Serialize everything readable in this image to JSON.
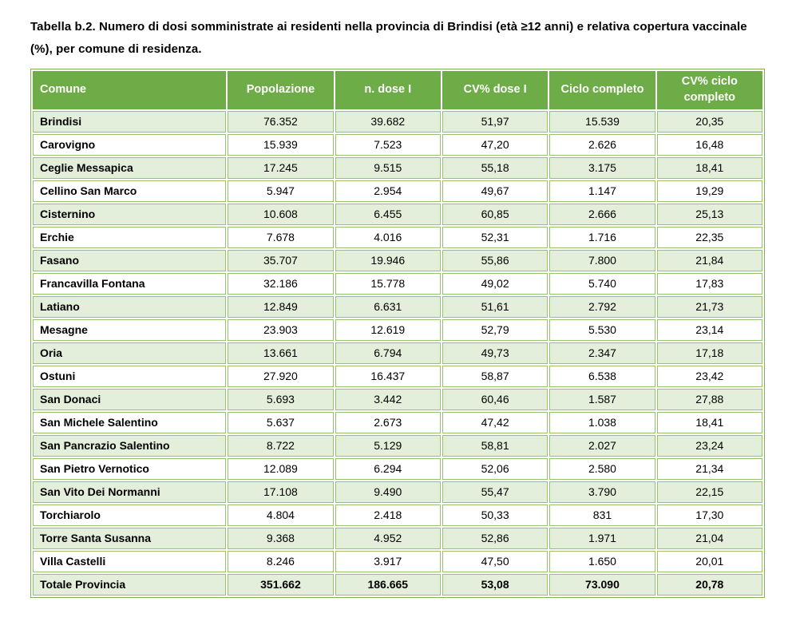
{
  "page": {
    "title": "Tabella b.2. Numero di dosi somministrate ai residenti nella provincia di Brindisi (età ≥12 anni) e relativa copertura vaccinale (%), per comune di residenza."
  },
  "colors": {
    "header_bg": "#6eac47",
    "header_text": "#ffffff",
    "row_alt_bg": "#e3efda",
    "row_bg": "#ffffff",
    "border": "#95c36d"
  },
  "table": {
    "columns": [
      "Comune",
      "Popolazione",
      "n. dose I",
      "CV% dose I",
      "Ciclo completo",
      "CV% ciclo completo"
    ],
    "rows": [
      [
        "Brindisi",
        "76.352",
        "39.682",
        "51,97",
        "15.539",
        "20,35"
      ],
      [
        "Carovigno",
        "15.939",
        "7.523",
        "47,20",
        "2.626",
        "16,48"
      ],
      [
        "Ceglie Messapica",
        "17.245",
        "9.515",
        "55,18",
        "3.175",
        "18,41"
      ],
      [
        "Cellino San Marco",
        "5.947",
        "2.954",
        "49,67",
        "1.147",
        "19,29"
      ],
      [
        "Cisternino",
        "10.608",
        "6.455",
        "60,85",
        "2.666",
        "25,13"
      ],
      [
        "Erchie",
        "7.678",
        "4.016",
        "52,31",
        "1.716",
        "22,35"
      ],
      [
        "Fasano",
        "35.707",
        "19.946",
        "55,86",
        "7.800",
        "21,84"
      ],
      [
        "Francavilla Fontana",
        "32.186",
        "15.778",
        "49,02",
        "5.740",
        "17,83"
      ],
      [
        "Latiano",
        "12.849",
        "6.631",
        "51,61",
        "2.792",
        "21,73"
      ],
      [
        "Mesagne",
        "23.903",
        "12.619",
        "52,79",
        "5.530",
        "23,14"
      ],
      [
        "Oria",
        "13.661",
        "6.794",
        "49,73",
        "2.347",
        "17,18"
      ],
      [
        "Ostuni",
        "27.920",
        "16.437",
        "58,87",
        "6.538",
        "23,42"
      ],
      [
        "San Donaci",
        "5.693",
        "3.442",
        "60,46",
        "1.587",
        "27,88"
      ],
      [
        "San Michele Salentino",
        "5.637",
        "2.673",
        "47,42",
        "1.038",
        "18,41"
      ],
      [
        "San Pancrazio Salentino",
        "8.722",
        "5.129",
        "58,81",
        "2.027",
        "23,24"
      ],
      [
        "San Pietro Vernotico",
        "12.089",
        "6.294",
        "52,06",
        "2.580",
        "21,34"
      ],
      [
        "San Vito Dei Normanni",
        "17.108",
        "9.490",
        "55,47",
        "3.790",
        "22,15"
      ],
      [
        "Torchiarolo",
        "4.804",
        "2.418",
        "50,33",
        "831",
        "17,30"
      ],
      [
        "Torre Santa Susanna",
        "9.368",
        "4.952",
        "52,86",
        "1.971",
        "21,04"
      ],
      [
        "Villa Castelli",
        "8.246",
        "3.917",
        "47,50",
        "1.650",
        "20,01"
      ]
    ],
    "total_row": [
      "Totale Provincia",
      "351.662",
      "186.665",
      "53,08",
      "73.090",
      "20,78"
    ]
  }
}
